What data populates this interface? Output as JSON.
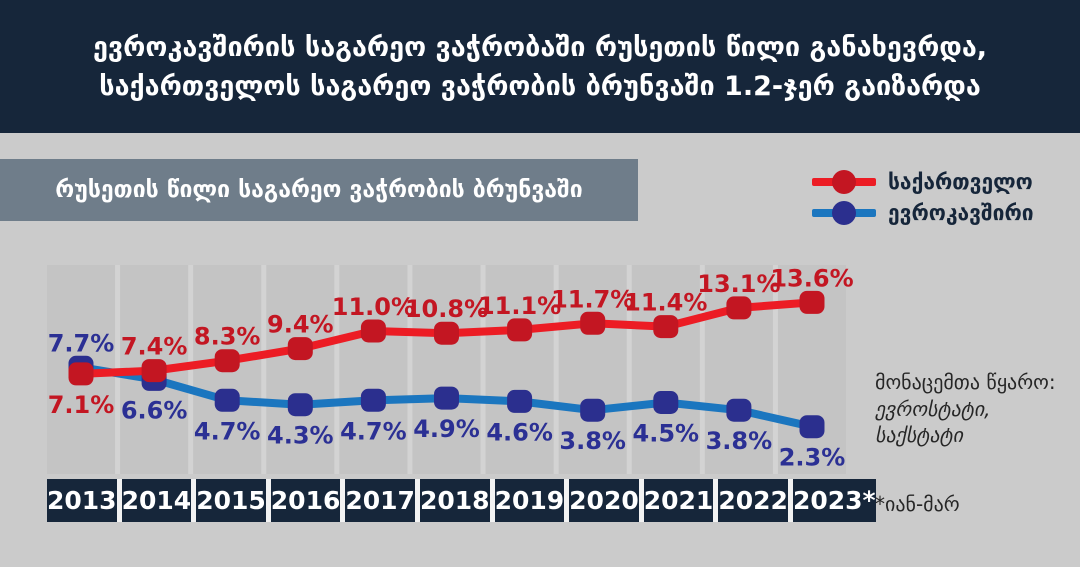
{
  "header": {
    "title_line1": "ევროკავშირის საგარეო ვაჭრობაში რუსეთის წილი განახევრდა,",
    "title_line2": "საქართველოს საგარეო ვაჭრობის ბრუნვაში 1.2-ჯერ გაიზარდა"
  },
  "subtitle": "რუსეთის წილი საგარეო ვაჭრობის ბრუნვაში",
  "chart_data": {
    "type": "line",
    "title": "რუსეთის წილი საგარეო ვაჭრობის ბრუნვაში",
    "categories": [
      "2013",
      "2014",
      "2015",
      "2016",
      "2017",
      "2018",
      "2019",
      "2020",
      "2021",
      "2022",
      "2023*"
    ],
    "unit": "%",
    "ylim": [
      -2,
      17
    ],
    "grid": "vertical-bands",
    "legend_position": "top-right",
    "series": [
      {
        "id": "georgia",
        "name": "საქართველო",
        "values": [
          7.1,
          7.4,
          8.3,
          9.4,
          11.0,
          10.8,
          11.1,
          11.7,
          11.4,
          13.1,
          13.6
        ],
        "line_color": "#ec1c24",
        "marker_color": "#c31622",
        "label_color": "#c31622",
        "label_position": "above",
        "label_overrides": {
          "0": "below"
        }
      },
      {
        "id": "eu",
        "name": "ევროკავშირი",
        "values": [
          7.7,
          6.6,
          4.7,
          4.3,
          4.7,
          4.9,
          4.6,
          3.8,
          4.5,
          3.8,
          2.3
        ],
        "line_color": "#1b76bf",
        "marker_color": "#2b2f8e",
        "label_color": "#2b3094",
        "label_position": "below",
        "label_overrides": {
          "0": "above"
        }
      }
    ]
  },
  "source": {
    "label": "მონაცემთა წყარო:",
    "items": [
      "ევროსტატი,",
      "საქსტატი"
    ]
  },
  "footnote": "*იან-მარ",
  "colors": {
    "header_bg": "#16263a",
    "page_bg": "#cbcbcb",
    "subtitle_bg": "#6f7d8a",
    "band": "#c4c4c4",
    "band_gap": "#d3d3d3",
    "year_bg": "#16263a",
    "legend_text": "#16263a"
  }
}
